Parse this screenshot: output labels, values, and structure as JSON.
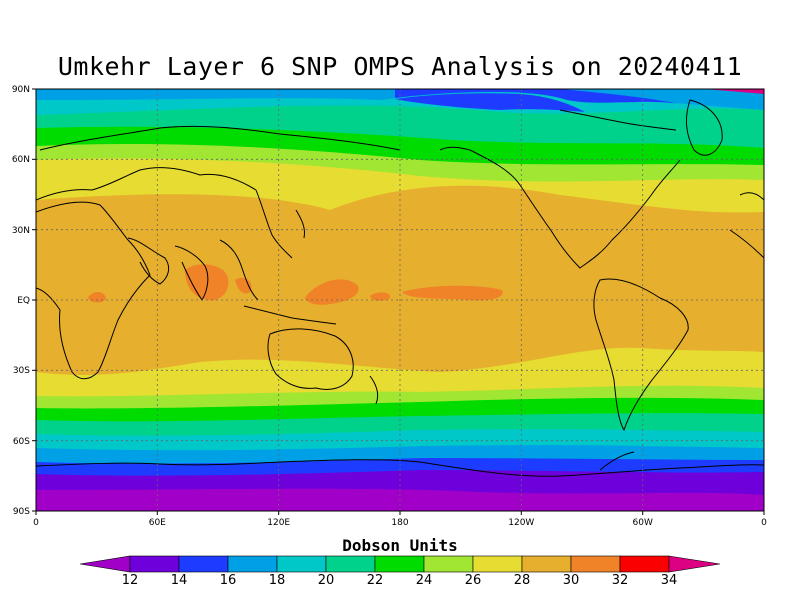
{
  "title": "Umkehr Layer 6 SNP OMPS Analysis on 20240411",
  "lat_labels": [
    "90N",
    "60N",
    "30N",
    "EQ",
    "30S",
    "60S",
    "90S"
  ],
  "lon_labels": [
    "0",
    "60E",
    "120E",
    "180",
    "120W",
    "60W",
    "0"
  ],
  "colorbar": {
    "title": "Dobson Units",
    "ticks": [
      "12",
      "14",
      "16",
      "18",
      "20",
      "22",
      "24",
      "26",
      "28",
      "30",
      "32",
      "34"
    ],
    "colors": [
      "#a000c8",
      "#6e00dc",
      "#1e3cff",
      "#00a0e6",
      "#00c8c8",
      "#00d28c",
      "#00dc00",
      "#a0e632",
      "#e6dc32",
      "#e6af2d",
      "#f08228",
      "#fa0000",
      "#dc0082"
    ]
  },
  "map_colors": {
    "land_outline": "#000000",
    "grid": "#666666"
  }
}
